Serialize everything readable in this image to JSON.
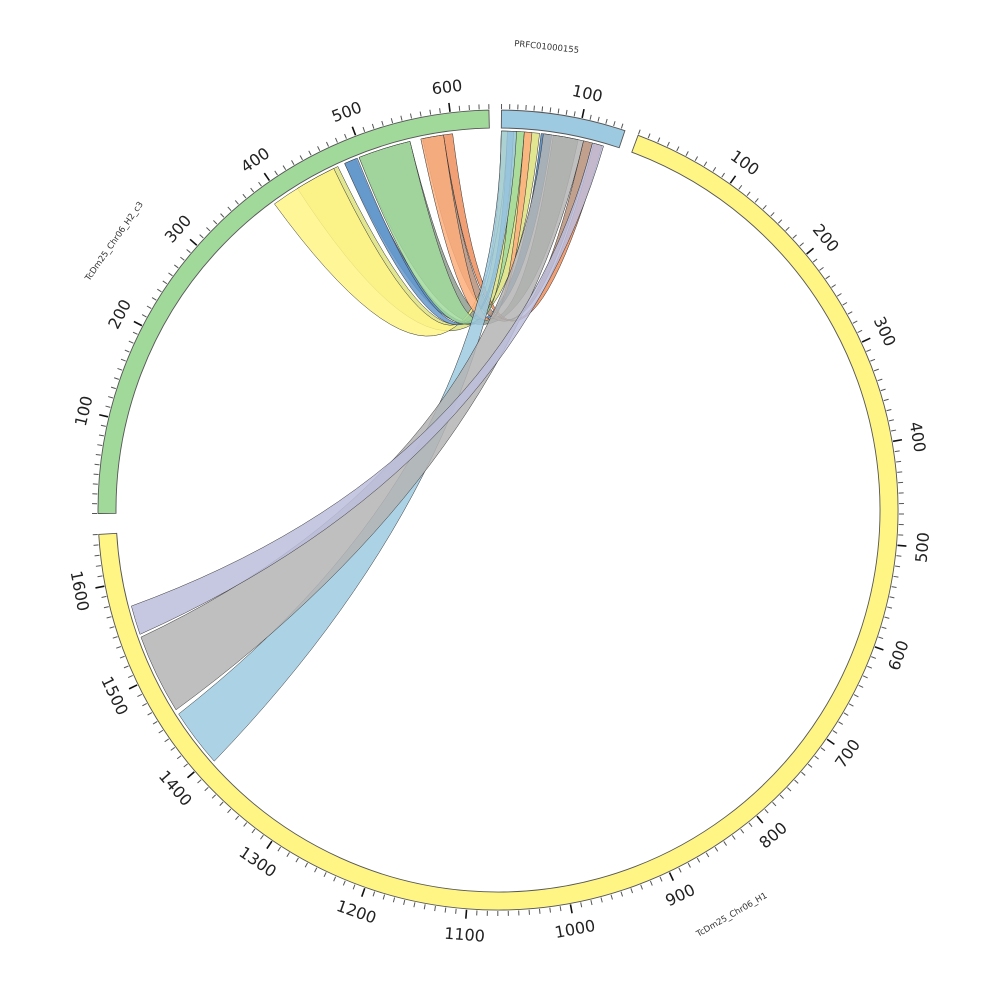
{
  "chart_data": {
    "type": "circos",
    "sequences": [
      {
        "id": "H1",
        "name": "TcDm25_Chr06_H1",
        "length": 1650,
        "color": "#fff585",
        "ticks": [
          "100",
          "200",
          "300",
          "400",
          "500",
          "600",
          "700",
          "800",
          "900",
          "1000",
          "1100",
          "1200",
          "1300",
          "1400",
          "1500",
          "1600"
        ]
      },
      {
        "id": "H2",
        "name": "TcDm25_Chr06_H2_c3",
        "length": 640,
        "color": "#a1d99b",
        "ticks": [
          "100",
          "200",
          "300",
          "400",
          "500",
          "600"
        ]
      },
      {
        "id": "P",
        "name": "PRFC01000155",
        "length": 155,
        "color": "#9ecae1",
        "ticks": [
          "100"
        ]
      }
    ],
    "links": [
      {
        "from": "P",
        "from_range": [
          0,
          50
        ],
        "to": "H2",
        "to_range": [
          420,
          470
        ],
        "color": "#dde27e"
      },
      {
        "from": "P",
        "from_range": [
          52,
          66
        ],
        "to": "H2",
        "to_range": [
          478,
          491
        ],
        "color": "#4a85bf"
      },
      {
        "from": "P",
        "from_range": [
          68,
          101
        ],
        "to": "H2",
        "to_range": [
          495,
          553
        ],
        "color": "#909e8f"
      },
      {
        "from": "P",
        "from_range": [
          108,
          120
        ],
        "to": "H2",
        "to_range": [
          567,
          590
        ],
        "color": "#b6907a"
      },
      {
        "from": "P",
        "from_range": [
          122,
          133
        ],
        "to": "H2",
        "to_range": [
          590,
          600
        ],
        "color": "#ee8e5c"
      },
      {
        "from": "H2",
        "from_range": [
          390,
          465
        ],
        "to": "P",
        "to_range": [
          0,
          8
        ],
        "color": "#fff585"
      },
      {
        "from": "H2",
        "from_range": [
          478,
          493
        ],
        "to": "P",
        "to_range": [
          8,
          16
        ],
        "color": "#6699cc"
      },
      {
        "from": "H2",
        "from_range": [
          495,
          553
        ],
        "to": "P",
        "to_range": [
          16,
          30
        ],
        "color": "#a1d99b"
      },
      {
        "from": "H2",
        "from_range": [
          565,
          590
        ],
        "to": "P",
        "to_range": [
          30,
          40
        ],
        "color": "#fdae7b"
      },
      {
        "from": "P",
        "from_range": [
          0,
          20
        ],
        "to": "H1",
        "to_range": [
          1395,
          1455
        ],
        "color": "#9ecae1"
      },
      {
        "from": "P",
        "from_range": [
          55,
          108
        ],
        "to": "H1",
        "to_range": [
          1460,
          1542
        ],
        "color": "#b4b4b4"
      },
      {
        "from": "P",
        "from_range": [
          120,
          135
        ],
        "to": "H1",
        "to_range": [
          1545,
          1575
        ],
        "color": "#bcbddc"
      }
    ]
  }
}
